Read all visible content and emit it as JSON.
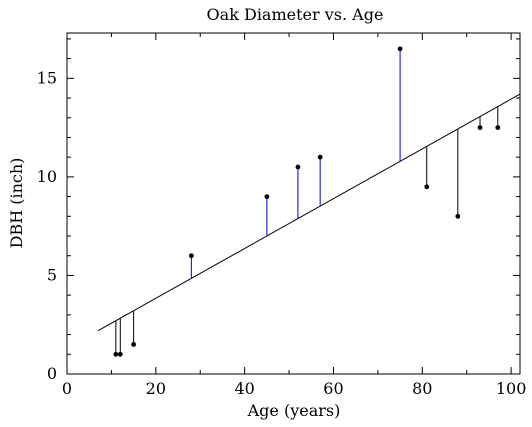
{
  "chart_data": {
    "type": "scatter",
    "title": "Oak Diameter vs. Age",
    "xlabel": "Age (years)",
    "ylabel": "DBH (inch)",
    "xlim": [
      0,
      102
    ],
    "ylim": [
      0,
      17.3
    ],
    "xticks": [
      0,
      20,
      40,
      60,
      80,
      100
    ],
    "yticks": [
      0,
      5,
      10,
      15
    ],
    "grid": false,
    "legend": "none",
    "points": [
      {
        "x": 11,
        "y": 1.0
      },
      {
        "x": 12,
        "y": 1.0
      },
      {
        "x": 15,
        "y": 1.5
      },
      {
        "x": 28,
        "y": 6.0
      },
      {
        "x": 45,
        "y": 9.0
      },
      {
        "x": 52,
        "y": 10.5
      },
      {
        "x": 57,
        "y": 11.0
      },
      {
        "x": 75,
        "y": 16.5
      },
      {
        "x": 81,
        "y": 9.5
      },
      {
        "x": 88,
        "y": 8.0
      },
      {
        "x": 93,
        "y": 12.5
      },
      {
        "x": 97,
        "y": 12.5
      }
    ],
    "fit_line": {
      "x": [
        7,
        102
      ],
      "y": [
        2.2,
        14.2
      ]
    },
    "colors": {
      "points": "#000000",
      "fit_line": "#000000",
      "residual_positive": "#0000cc",
      "residual_negative": "#000000"
    }
  }
}
